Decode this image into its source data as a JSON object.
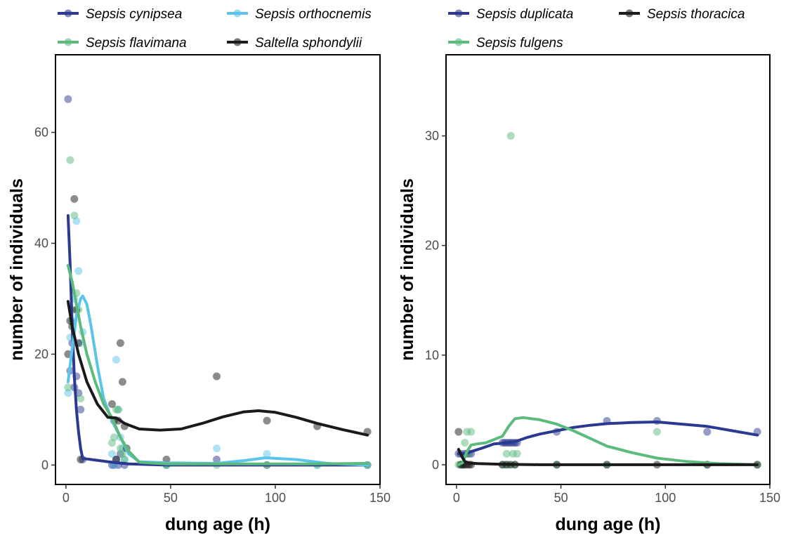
{
  "chart_data": [
    {
      "type": "scatter",
      "xlabel": "dung age (h)",
      "ylabel": "number of individuals",
      "xlim": [
        -5,
        150
      ],
      "ylim": [
        -3.5,
        74
      ],
      "xticks": [
        0,
        50,
        100,
        150
      ],
      "yticks": [
        0,
        20,
        40,
        60
      ],
      "grid": false,
      "legend": "top",
      "series": [
        {
          "name": "Sepsis cynipsea",
          "color": "#2b3990",
          "points": [
            [
              1,
              66
            ],
            [
              2,
              17
            ],
            [
              3,
              22
            ],
            [
              4,
              14
            ],
            [
              5,
              16
            ],
            [
              6,
              13
            ],
            [
              7,
              10
            ],
            [
              8,
              1
            ],
            [
              22,
              0
            ],
            [
              23,
              0
            ],
            [
              24,
              1
            ],
            [
              25,
              0
            ],
            [
              26,
              2
            ],
            [
              28,
              0
            ],
            [
              48,
              0
            ],
            [
              72,
              1
            ],
            [
              96,
              0
            ],
            [
              144,
              0
            ]
          ],
          "fit": [
            [
              1,
              45
            ],
            [
              2,
              36
            ],
            [
              3,
              25
            ],
            [
              4,
              16
            ],
            [
              5,
              10
            ],
            [
              6,
              6
            ],
            [
              7,
              3
            ],
            [
              8,
              1.2
            ],
            [
              10,
              1.1
            ],
            [
              20,
              0.6
            ],
            [
              30,
              0.2
            ],
            [
              48,
              0
            ],
            [
              72,
              0
            ],
            [
              96,
              0
            ],
            [
              120,
              0
            ],
            [
              144,
              0
            ]
          ]
        },
        {
          "name": "Sepsis orthocnemis",
          "color": "#5bc4ea",
          "points": [
            [
              1,
              13
            ],
            [
              2,
              23
            ],
            [
              3,
              26
            ],
            [
              4,
              30
            ],
            [
              5,
              44
            ],
            [
              6,
              35
            ],
            [
              7,
              22
            ],
            [
              8,
              24
            ],
            [
              22,
              2
            ],
            [
              23,
              0
            ],
            [
              24,
              19
            ],
            [
              25,
              10
            ],
            [
              26,
              5
            ],
            [
              27,
              3
            ],
            [
              28,
              1
            ],
            [
              48,
              0
            ],
            [
              72,
              3
            ],
            [
              96,
              2
            ],
            [
              120,
              0
            ],
            [
              144,
              0
            ]
          ],
          "fit": [
            [
              1,
              15
            ],
            [
              3,
              21
            ],
            [
              5,
              27
            ],
            [
              7,
              30
            ],
            [
              8,
              30.5
            ],
            [
              10,
              29
            ],
            [
              12,
              25
            ],
            [
              15,
              18
            ],
            [
              18,
              12
            ],
            [
              22,
              8
            ],
            [
              26,
              5
            ],
            [
              30,
              2
            ],
            [
              35,
              0.6
            ],
            [
              48,
              0.4
            ],
            [
              72,
              0.3
            ],
            [
              85,
              0.8
            ],
            [
              95,
              1.3
            ],
            [
              110,
              1
            ],
            [
              125,
              0.3
            ],
            [
              144,
              0
            ]
          ]
        },
        {
          "name": "Sepsis flavimana",
          "color": "#5cba7d",
          "points": [
            [
              1,
              14
            ],
            [
              2,
              55
            ],
            [
              3,
              28
            ],
            [
              4,
              45
            ],
            [
              5,
              31
            ],
            [
              6,
              28
            ],
            [
              7,
              12
            ],
            [
              22,
              4
            ],
            [
              23,
              5
            ],
            [
              24,
              10
            ],
            [
              25,
              10
            ],
            [
              26,
              3
            ],
            [
              27,
              2
            ],
            [
              28,
              1
            ],
            [
              48,
              0
            ],
            [
              72,
              0
            ],
            [
              96,
              0
            ],
            [
              120,
              0
            ],
            [
              144,
              0
            ]
          ],
          "fit": [
            [
              1,
              36
            ],
            [
              3,
              33
            ],
            [
              5,
              29
            ],
            [
              7,
              25
            ],
            [
              10,
              20
            ],
            [
              14,
              15
            ],
            [
              18,
              11
            ],
            [
              22,
              8.5
            ],
            [
              26,
              5
            ],
            [
              30,
              2.5
            ],
            [
              35,
              0.5
            ],
            [
              48,
              0.2
            ],
            [
              72,
              0.2
            ],
            [
              96,
              0.2
            ],
            [
              120,
              0.2
            ],
            [
              144,
              0.3
            ]
          ]
        },
        {
          "name": "Saltella sphondylii",
          "color": "#1a1a1a",
          "points": [
            [
              1,
              20
            ],
            [
              2,
              26
            ],
            [
              3,
              25
            ],
            [
              4,
              48
            ],
            [
              5,
              28
            ],
            [
              6,
              22
            ],
            [
              7,
              1
            ],
            [
              22,
              11
            ],
            [
              23,
              8
            ],
            [
              24,
              1
            ],
            [
              25,
              8
            ],
            [
              26,
              22
            ],
            [
              27,
              15
            ],
            [
              28,
              7
            ],
            [
              29,
              3
            ],
            [
              48,
              1
            ],
            [
              72,
              16
            ],
            [
              96,
              8
            ],
            [
              120,
              7
            ],
            [
              144,
              6
            ]
          ],
          "fit": [
            [
              1,
              29.5
            ],
            [
              3,
              25
            ],
            [
              6,
              20
            ],
            [
              10,
              15
            ],
            [
              15,
              11
            ],
            [
              20,
              8.6
            ],
            [
              24,
              8.5
            ],
            [
              28,
              7.5
            ],
            [
              35,
              6.5
            ],
            [
              45,
              6.3
            ],
            [
              55,
              6.5
            ],
            [
              65,
              7.5
            ],
            [
              75,
              8.7
            ],
            [
              85,
              9.6
            ],
            [
              92,
              9.8
            ],
            [
              100,
              9.5
            ],
            [
              110,
              8.6
            ],
            [
              120,
              7.5
            ],
            [
              132,
              6.4
            ],
            [
              144,
              5.4
            ]
          ]
        }
      ]
    },
    {
      "type": "scatter",
      "xlabel": "dung age (h)",
      "ylabel": "number of individuals",
      "xlim": [
        -5,
        150
      ],
      "ylim": [
        -1.8,
        37.4
      ],
      "xticks": [
        0,
        50,
        100,
        150
      ],
      "yticks": [
        0,
        10,
        20,
        30
      ],
      "grid": false,
      "legend": "top",
      "series": [
        {
          "name": "Sepsis duplicata",
          "color": "#2b3990",
          "points": [
            [
              1,
              1
            ],
            [
              2,
              1
            ],
            [
              3,
              0
            ],
            [
              4,
              1
            ],
            [
              5,
              1
            ],
            [
              6,
              1
            ],
            [
              7,
              1
            ],
            [
              22,
              2
            ],
            [
              23,
              2
            ],
            [
              24,
              2
            ],
            [
              25,
              2
            ],
            [
              26,
              2
            ],
            [
              27,
              2
            ],
            [
              28,
              2
            ],
            [
              29,
              2
            ],
            [
              48,
              3
            ],
            [
              72,
              4
            ],
            [
              96,
              4
            ],
            [
              120,
              3
            ],
            [
              144,
              3
            ]
          ],
          "fit": [
            [
              1,
              1
            ],
            [
              4,
              1
            ],
            [
              7,
              1.2
            ],
            [
              12,
              1.5
            ],
            [
              18,
              1.9
            ],
            [
              24,
              2
            ],
            [
              28,
              2.1
            ],
            [
              34,
              2.5
            ],
            [
              40,
              2.8
            ],
            [
              48,
              3.1
            ],
            [
              56,
              3.4
            ],
            [
              64,
              3.6
            ],
            [
              72,
              3.75
            ],
            [
              84,
              3.85
            ],
            [
              96,
              3.9
            ],
            [
              108,
              3.7
            ],
            [
              120,
              3.5
            ],
            [
              132,
              3.1
            ],
            [
              144,
              2.7
            ]
          ]
        },
        {
          "name": "Sepsis fulgens",
          "color": "#5cba7d",
          "points": [
            [
              1,
              0
            ],
            [
              2,
              0
            ],
            [
              3,
              0
            ],
            [
              4,
              2
            ],
            [
              5,
              3
            ],
            [
              6,
              1
            ],
            [
              7,
              3
            ],
            [
              22,
              0
            ],
            [
              23,
              0
            ],
            [
              24,
              1
            ],
            [
              25,
              0
            ],
            [
              26,
              30
            ],
            [
              27,
              1
            ],
            [
              28,
              0
            ],
            [
              29,
              1
            ],
            [
              48,
              0
            ],
            [
              72,
              0
            ],
            [
              96,
              3
            ],
            [
              120,
              0
            ],
            [
              144,
              0
            ]
          ],
          "fit": [
            [
              1,
              0
            ],
            [
              3,
              0.2
            ],
            [
              5,
              1.2
            ],
            [
              7,
              1.8
            ],
            [
              10,
              1.9
            ],
            [
              14,
              2
            ],
            [
              18,
              2.3
            ],
            [
              22,
              2.6
            ],
            [
              25,
              3.5
            ],
            [
              28,
              4.2
            ],
            [
              32,
              4.3
            ],
            [
              40,
              4.1
            ],
            [
              48,
              3.7
            ],
            [
              56,
              3.1
            ],
            [
              64,
              2.4
            ],
            [
              72,
              1.7
            ],
            [
              84,
              1.1
            ],
            [
              96,
              0.6
            ],
            [
              110,
              0.3
            ],
            [
              125,
              0.1
            ],
            [
              144,
              0
            ]
          ]
        },
        {
          "name": "Sepsis thoracica",
          "color": "#1a1a1a",
          "points": [
            [
              1,
              3
            ],
            [
              2,
              0
            ],
            [
              3,
              0
            ],
            [
              4,
              0
            ],
            [
              5,
              0
            ],
            [
              6,
              0
            ],
            [
              7,
              0
            ],
            [
              22,
              0
            ],
            [
              24,
              0
            ],
            [
              26,
              0
            ],
            [
              28,
              0
            ],
            [
              48,
              0
            ],
            [
              72,
              0
            ],
            [
              96,
              0
            ],
            [
              120,
              0
            ],
            [
              144,
              0
            ]
          ],
          "fit": [
            [
              1,
              1.4
            ],
            [
              2,
              1
            ],
            [
              3,
              0.6
            ],
            [
              4,
              0.3
            ],
            [
              6,
              0.15
            ],
            [
              10,
              0.1
            ],
            [
              20,
              0.05
            ],
            [
              40,
              0
            ],
            [
              72,
              0
            ],
            [
              96,
              0
            ],
            [
              120,
              0
            ],
            [
              144,
              0
            ]
          ]
        }
      ]
    }
  ]
}
